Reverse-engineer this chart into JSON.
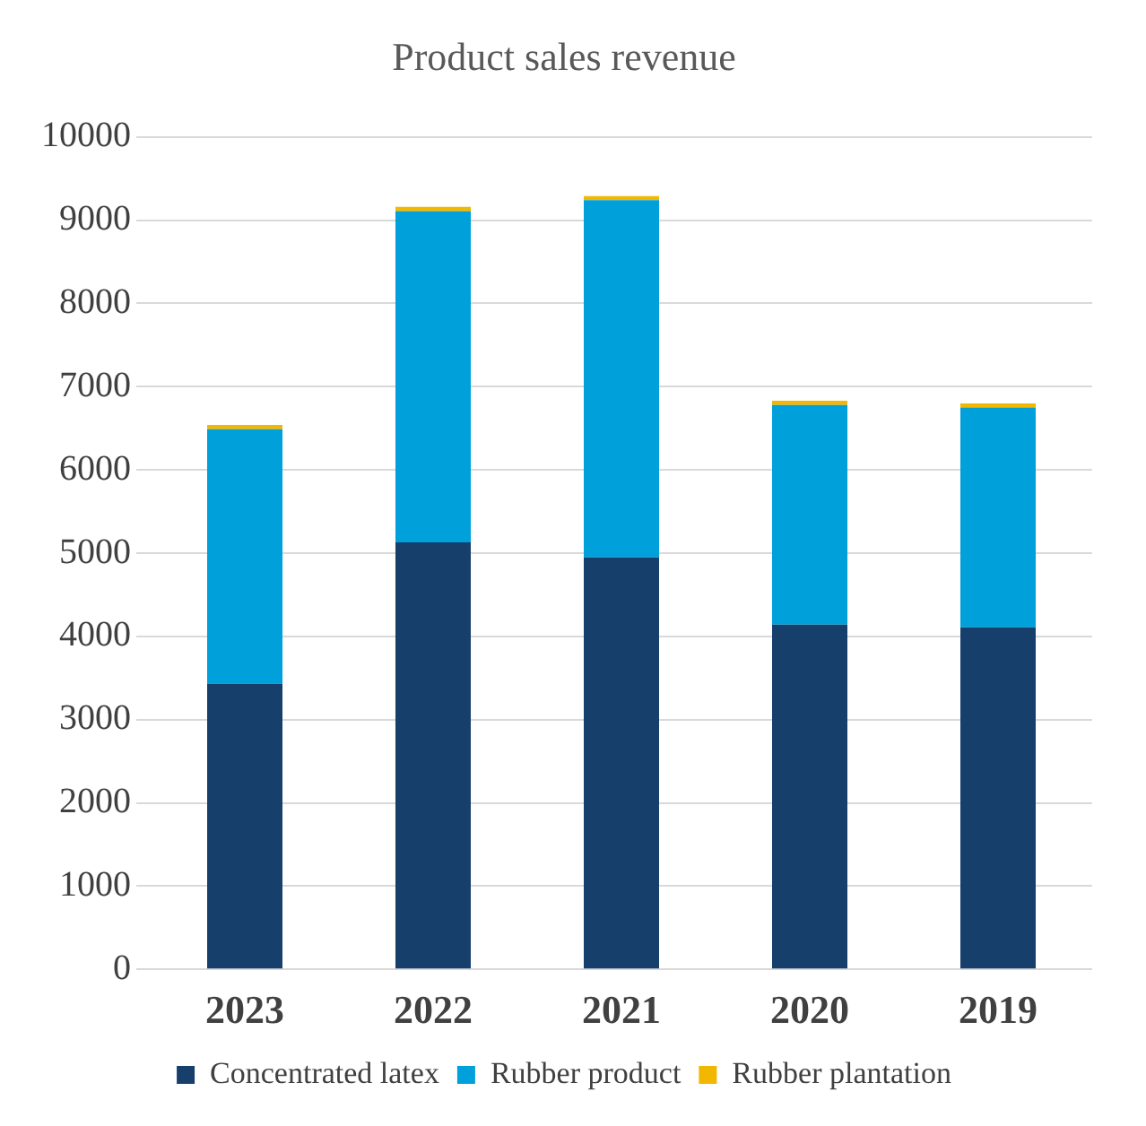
{
  "chart_data": {
    "type": "bar",
    "title": "Product sales revenue",
    "stacked": true,
    "categories": [
      "2023",
      "2022",
      "2021",
      "2020",
      "2019"
    ],
    "series": [
      {
        "name": "Concentrated latex",
        "color": "#173f6c",
        "values": [
          3430,
          5130,
          4950,
          4140,
          4110
        ]
      },
      {
        "name": "Rubber product",
        "color": "#00a0da",
        "values": [
          3060,
          3980,
          4290,
          2640,
          2640
        ]
      },
      {
        "name": "Rubber plantation",
        "color": "#f2b800",
        "values": [
          50,
          50,
          50,
          50,
          50
        ]
      }
    ],
    "ylim": [
      0,
      10000
    ],
    "yticks": [
      0,
      1000,
      2000,
      3000,
      4000,
      5000,
      6000,
      7000,
      8000,
      9000,
      10000
    ],
    "grid": "y",
    "legend": "bottom"
  }
}
